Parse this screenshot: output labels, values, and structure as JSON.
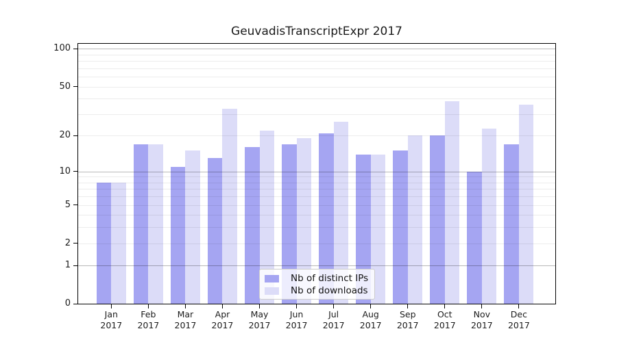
{
  "title": "GeuvadisTranscriptExpr 2017",
  "chart_data": {
    "type": "bar",
    "title": "GeuvadisTranscriptExpr 2017",
    "categories": [
      "Jan 2017",
      "Feb 2017",
      "Mar 2017",
      "Apr 2017",
      "May 2017",
      "Jun 2017",
      "Jul 2017",
      "Aug 2017",
      "Sep 2017",
      "Oct 2017",
      "Nov 2017",
      "Dec 2017"
    ],
    "month_labels": [
      "Jan",
      "Feb",
      "Mar",
      "Apr",
      "May",
      "Jun",
      "Jul",
      "Aug",
      "Sep",
      "Oct",
      "Nov",
      "Dec"
    ],
    "year_label": "2017",
    "series": [
      {
        "name": "Nb of distinct IPs",
        "color": "#a5a5f2",
        "values": [
          8,
          17,
          11,
          13,
          16,
          17,
          21,
          14,
          15,
          20,
          10,
          17
        ]
      },
      {
        "name": "Nb of downloads",
        "color": "#dcdcf8",
        "values": [
          8,
          17,
          15,
          33,
          22,
          19,
          26,
          14,
          20,
          38,
          23,
          36
        ]
      }
    ],
    "xlabel": "",
    "ylabel": "",
    "yscale": "log1p",
    "ylim": [
      0,
      112
    ],
    "y_axis_ticks": [
      0,
      1,
      2,
      5,
      10,
      20,
      50,
      100
    ],
    "gridlines_light": [
      2,
      3,
      4,
      5,
      6,
      7,
      8,
      9,
      20,
      30,
      40,
      50,
      60,
      70,
      80,
      90
    ],
    "gridlines_dark": [
      1,
      10,
      100
    ],
    "grid": true,
    "legend_position": "bottom-center"
  },
  "legend": {
    "items": [
      "Nb of distinct IPs",
      "Nb of downloads"
    ]
  },
  "colors": {
    "bar_distinct_ips": "#a5a5f2",
    "bar_downloads": "#dcdcf8",
    "grid_light": "#ececec",
    "grid_dark": "#b8b8b8",
    "axis": "#000000"
  }
}
